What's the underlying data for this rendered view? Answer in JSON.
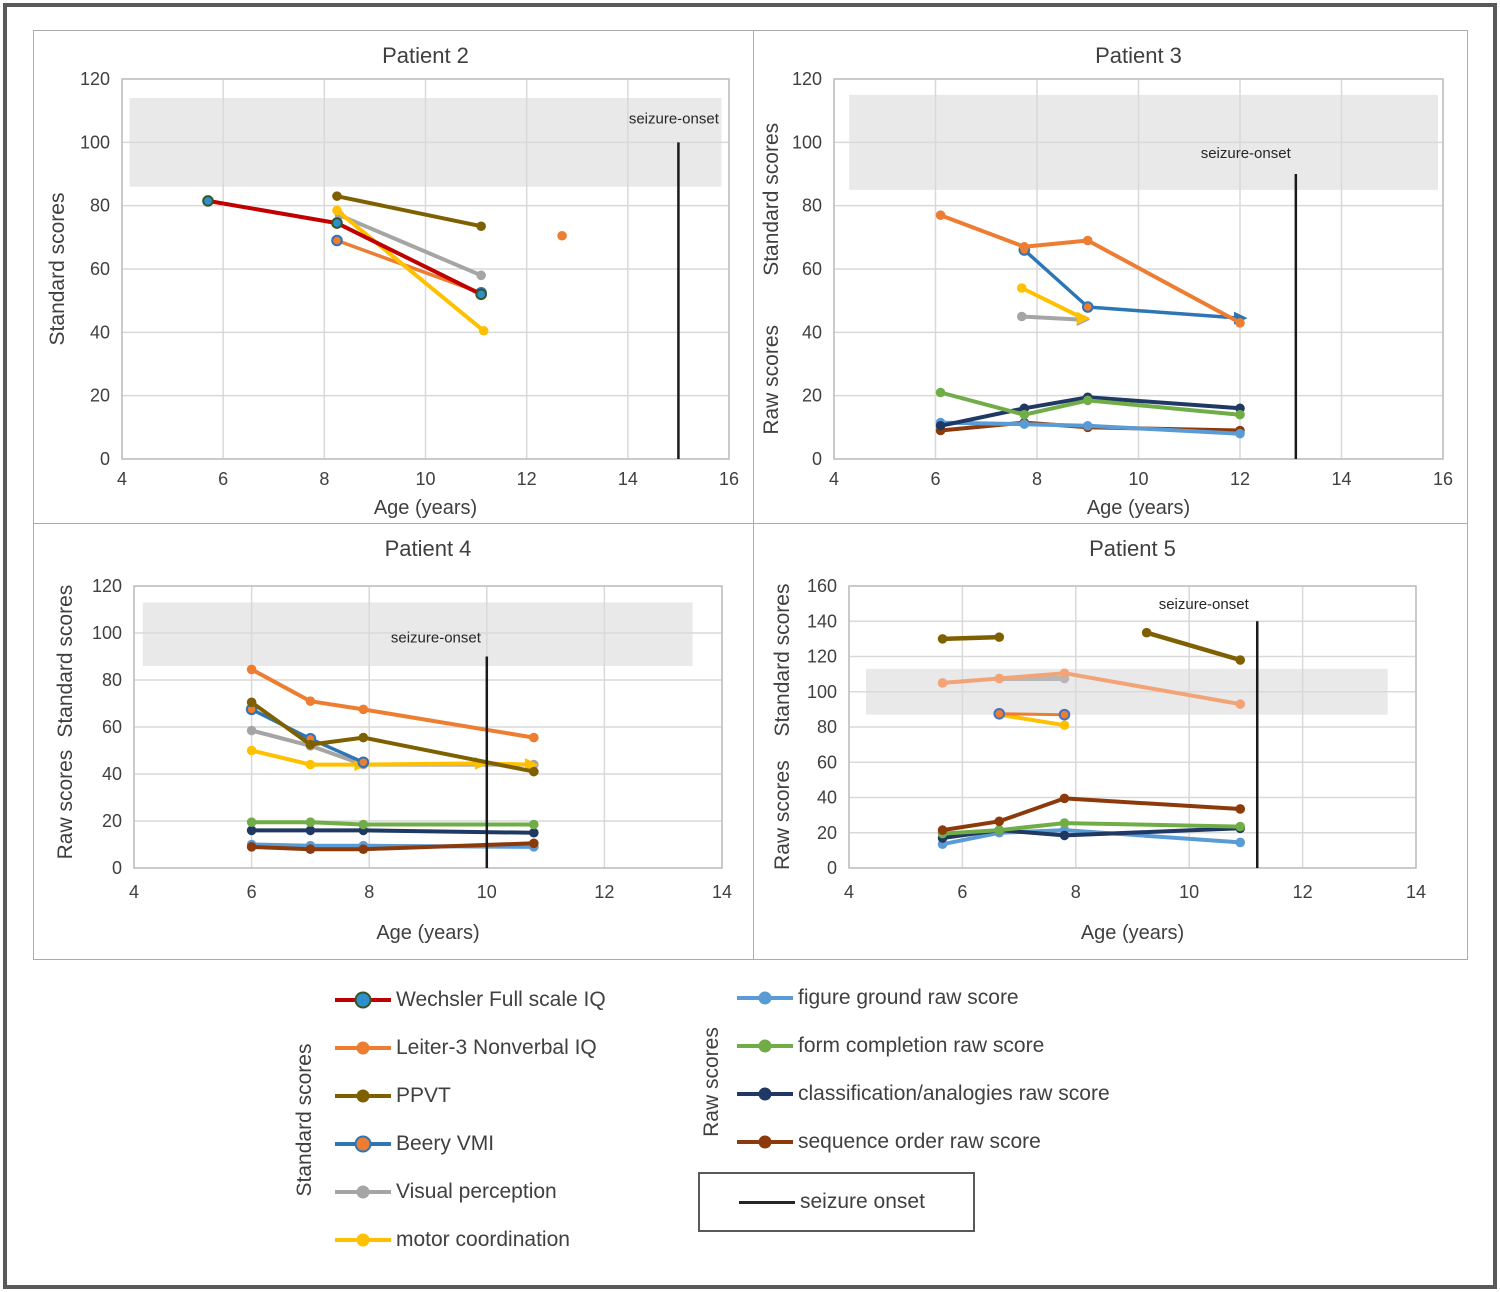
{
  "figure": {
    "border_color": "#58595B",
    "grid_color": "#D9D9D9",
    "plot_border_color": "#BFBFBF",
    "band_color": "#E9E9E9",
    "seizure_line_color": "#1A1A1A"
  },
  "legend": {
    "standard_label": "Standard scores",
    "raw_label": "Raw scores",
    "standard_items": [
      {
        "label": "Wechsler Full scale IQ",
        "line": "#C00000",
        "marker": "#2E8FCE",
        "marker_stroke": "#375623"
      },
      {
        "label": "Leiter-3 Nonverbal IQ",
        "line": "#ED7D31",
        "marker": "#ED7D31"
      },
      {
        "label": "PPVT",
        "line": "#7F6000",
        "marker": "#7F6000"
      },
      {
        "label": "Beery VMI",
        "line": "#2E75B6",
        "marker": "#ED7D31",
        "marker_stroke": "#2E75B6"
      },
      {
        "label": "Visual perception",
        "line": "#A5A5A5",
        "marker": "#A5A5A5"
      },
      {
        "label": "motor coordination",
        "line": "#FFC000",
        "marker": "#FFC000"
      }
    ],
    "raw_items": [
      {
        "label": "figure ground raw score",
        "line": "#5B9BD5",
        "marker": "#5B9BD5"
      },
      {
        "label": "form completion raw score",
        "line": "#70AD47",
        "marker": "#70AD47"
      },
      {
        "label": "classification/analogies raw score",
        "line": "#1F3864",
        "marker": "#1F3864"
      },
      {
        "label": "sequence order raw score",
        "line": "#8C3A0B",
        "marker": "#8C3A0B"
      }
    ],
    "seizure_item": {
      "label": "seizure onset",
      "line": "#262626"
    }
  },
  "chart_data": [
    {
      "type": "line",
      "title": "Patient 2",
      "xlabel": "Age (years)",
      "xlim": [
        4,
        16
      ],
      "ylim": [
        0,
        120
      ],
      "x_ticks": [
        4,
        6,
        8,
        10,
        12,
        14,
        16
      ],
      "y_ticks": [
        0,
        20,
        40,
        60,
        80,
        100,
        120
      ],
      "normal_band": {
        "x0": 4.15,
        "x1": 15.85,
        "y0": 86,
        "y1": 114
      },
      "ylabels": [
        {
          "text": "Standard scores",
          "y": 60
        }
      ],
      "seizure": {
        "x": 15,
        "y_top": 100,
        "label": "seizure-onset",
        "label_x": 15.8,
        "label_y": 106,
        "anchor": "end"
      },
      "series": [
        {
          "name": "beery-vmi",
          "color": "#ED7D31",
          "width": 3.5,
          "marker_fill": "#ED7D31",
          "marker_stroke": "#2E75B6",
          "points": [
            [
              8.25,
              69
            ],
            [
              11.1,
              52.5
            ]
          ]
        },
        {
          "name": "visual-perception",
          "color": "#A5A5A5",
          "width": 4,
          "marker_fill": "#A5A5A5",
          "points": [
            [
              8.3,
              77
            ],
            [
              11.1,
              58
            ]
          ]
        },
        {
          "name": "motor-coordination",
          "color": "#FFC000",
          "width": 4,
          "marker_fill": "#FFC000",
          "points": [
            [
              8.25,
              78.5
            ],
            [
              11.15,
              40.5
            ]
          ]
        },
        {
          "name": "ppvt",
          "color": "#7F6000",
          "width": 4,
          "marker_fill": "#7F6000",
          "points": [
            [
              8.25,
              83
            ],
            [
              11.1,
              73.5
            ]
          ]
        },
        {
          "name": "wechsler-full-scale-iq",
          "color": "#C00000",
          "width": 4,
          "marker_fill": "#2E8FCE",
          "marker_stroke": "#375623",
          "points": [
            [
              5.7,
              81.5
            ],
            [
              8.25,
              74.5
            ],
            [
              11.1,
              52
            ]
          ]
        },
        {
          "name": "leiter-3-nonverbal-iq",
          "color": "#ED7D31",
          "width": 3.5,
          "marker_fill": "#ED7D31",
          "points": [
            [
              12.7,
              70.5
            ]
          ]
        }
      ]
    },
    {
      "type": "line",
      "title": "Patient 3",
      "xlabel": "Age (years)",
      "xlim": [
        4,
        16
      ],
      "ylim": [
        0,
        120
      ],
      "x_ticks": [
        4,
        6,
        8,
        10,
        12,
        14,
        16
      ],
      "y_ticks": [
        0,
        20,
        40,
        60,
        80,
        100,
        120
      ],
      "normal_band": {
        "x0": 4.3,
        "x1": 15.9,
        "y0": 85,
        "y1": 115
      },
      "ylabels": [
        {
          "text": "Standard scores",
          "y": 82
        },
        {
          "text": "Raw scores",
          "y": 25
        }
      ],
      "seizure": {
        "x": 13.1,
        "y_top": 90,
        "label": "seizure-onset",
        "label_x": 13.0,
        "label_y": 95,
        "anchor": "end"
      },
      "series": [
        {
          "name": "sequence-order-raw",
          "color": "#8C3A0B",
          "width": 4,
          "marker_fill": "#8C3A0B",
          "points": [
            [
              6.1,
              9
            ],
            [
              7.75,
              11.5
            ],
            [
              9.0,
              10
            ],
            [
              12.0,
              9
            ]
          ]
        },
        {
          "name": "figure-ground-raw",
          "color": "#5B9BD5",
          "width": 4,
          "marker_fill": "#5B9BD5",
          "points": [
            [
              6.1,
              11.5
            ],
            [
              7.75,
              11
            ],
            [
              9.0,
              10.5
            ],
            [
              12.0,
              8
            ]
          ]
        },
        {
          "name": "classification-analogies-raw",
          "color": "#1F3864",
          "width": 4,
          "marker_fill": "#1F3864",
          "points": [
            [
              6.1,
              10.5
            ],
            [
              7.75,
              16
            ],
            [
              9.0,
              19.5
            ],
            [
              12.0,
              16
            ]
          ]
        },
        {
          "name": "form-completion-raw",
          "color": "#70AD47",
          "width": 4,
          "marker_fill": "#70AD47",
          "points": [
            [
              6.1,
              21
            ],
            [
              7.75,
              14
            ],
            [
              9.0,
              18.5
            ],
            [
              12.0,
              14
            ]
          ]
        },
        {
          "name": "visual-perception",
          "color": "#A5A5A5",
          "width": 4,
          "marker_fill": "#A5A5A5",
          "points": [
            [
              7.7,
              45
            ],
            [
              8.9,
              44,
              "a"
            ]
          ]
        },
        {
          "name": "motor-coordination",
          "color": "#FFC000",
          "width": 4,
          "marker_fill": "#FFC000",
          "points": [
            [
              7.7,
              54
            ],
            [
              8.9,
              44.5,
              "a"
            ]
          ]
        },
        {
          "name": "beery-vmi",
          "color": "#2E75B6",
          "width": 3.5,
          "marker_fill": "#ED7D31",
          "marker_stroke": "#2E75B6",
          "points": [
            [
              7.75,
              66
            ],
            [
              9.0,
              48
            ],
            [
              12.0,
              44.5,
              "a"
            ]
          ]
        },
        {
          "name": "leiter-3-nonverbal-iq",
          "color": "#ED7D31",
          "width": 4,
          "marker_fill": "#ED7D31",
          "points": [
            [
              6.1,
              77
            ],
            [
              7.75,
              67
            ],
            [
              9.0,
              69
            ],
            [
              12.0,
              43
            ]
          ]
        }
      ]
    },
    {
      "type": "line",
      "title": "Patient 4",
      "xlabel": "Age (years)",
      "xlim": [
        4,
        14
      ],
      "ylim": [
        0,
        120
      ],
      "x_ticks": [
        4,
        6,
        8,
        10,
        12,
        14
      ],
      "y_ticks": [
        0,
        20,
        40,
        60,
        80,
        100,
        120
      ],
      "normal_band": {
        "x0": 4.15,
        "x1": 13.5,
        "y0": 86,
        "y1": 113
      },
      "ylabels": [
        {
          "text": "Standard scores",
          "y": 88
        },
        {
          "text": "Raw scores",
          "y": 27
        }
      ],
      "seizure": {
        "x": 10,
        "y_top": 90,
        "label": "seizure-onset",
        "label_x": 9.9,
        "label_y": 96,
        "anchor": "end"
      },
      "series": [
        {
          "name": "figure-ground-raw",
          "color": "#5B9BD5",
          "width": 4,
          "marker_fill": "#5B9BD5",
          "points": [
            [
              6,
              10
            ],
            [
              7,
              9.5
            ],
            [
              7.9,
              9.5
            ],
            [
              10.8,
              9
            ]
          ]
        },
        {
          "name": "sequence-order-raw",
          "color": "#8C3A0B",
          "width": 4,
          "marker_fill": "#8C3A0B",
          "points": [
            [
              6,
              9
            ],
            [
              7,
              8
            ],
            [
              7.9,
              8
            ],
            [
              10.8,
              10.5
            ]
          ]
        },
        {
          "name": "classification-analogies-raw",
          "color": "#1F3864",
          "width": 4,
          "marker_fill": "#1F3864",
          "points": [
            [
              6,
              16
            ],
            [
              7,
              16
            ],
            [
              7.9,
              16
            ],
            [
              10.8,
              15
            ]
          ]
        },
        {
          "name": "form-completion-raw",
          "color": "#70AD47",
          "width": 4,
          "marker_fill": "#70AD47",
          "points": [
            [
              6,
              19.5
            ],
            [
              7,
              19.5
            ],
            [
              7.9,
              18.5
            ],
            [
              10.8,
              18.5
            ]
          ]
        },
        {
          "name": "visual-perception",
          "color": "#A5A5A5",
          "width": 4,
          "marker_fill": "#A5A5A5",
          "points": [
            [
              6,
              58.5
            ],
            [
              7,
              52
            ],
            [
              7.9,
              44
            ],
            [
              10.8,
              44
            ]
          ]
        },
        {
          "name": "motor-coordination",
          "color": "#FFC000",
          "width": 4,
          "marker_fill": "#FFC000",
          "points": [
            [
              6,
              50
            ],
            [
              7,
              44
            ],
            [
              7.85,
              44,
              "a"
            ],
            [
              9.9,
              44.5,
              "a"
            ],
            [
              10.75,
              44,
              "a"
            ]
          ]
        },
        {
          "name": "beery-vmi",
          "color": "#2E75B6",
          "width": 3.5,
          "marker_fill": "#ED7D31",
          "marker_stroke": "#2E75B6",
          "points": [
            [
              6,
              67.5
            ],
            [
              7,
              55
            ],
            [
              7.9,
              45
            ]
          ]
        },
        {
          "name": "ppvt",
          "color": "#7F6000",
          "width": 4,
          "marker_fill": "#7F6000",
          "points": [
            [
              6,
              70.5
            ],
            [
              7,
              52.5
            ],
            [
              7.9,
              55.5
            ],
            [
              10.8,
              41
            ]
          ]
        },
        {
          "name": "leiter-3-nonverbal-iq",
          "color": "#ED7D31",
          "width": 4,
          "marker_fill": "#ED7D31",
          "points": [
            [
              6,
              84.5
            ],
            [
              7,
              71
            ],
            [
              7.9,
              67.5
            ],
            [
              10.8,
              55.5
            ]
          ]
        }
      ]
    },
    {
      "type": "line",
      "title": "Patient 5",
      "xlabel": "Age (years)",
      "xlim": [
        4,
        14
      ],
      "ylim": [
        0,
        160
      ],
      "x_ticks": [
        4,
        6,
        8,
        10,
        12,
        14
      ],
      "y_ticks": [
        0,
        20,
        40,
        60,
        80,
        100,
        120,
        140,
        160
      ],
      "normal_band": {
        "x0": 4.3,
        "x1": 13.5,
        "y0": 87,
        "y1": 113
      },
      "ylabels": [
        {
          "text": "Standard scores",
          "y": 118
        },
        {
          "text": "Raw scores",
          "y": 30
        }
      ],
      "seizure": {
        "x": 11.2,
        "y_top": 140,
        "label": "seizure-onset",
        "label_x": 11.05,
        "label_y": 147,
        "anchor": "end"
      },
      "series": [
        {
          "name": "figure-ground-raw",
          "color": "#5B9BD5",
          "width": 4,
          "marker_fill": "#5B9BD5",
          "points": [
            [
              5.65,
              13.5
            ],
            [
              6.65,
              20
            ],
            [
              7.8,
              21.5
            ],
            [
              10.9,
              14.5
            ]
          ]
        },
        {
          "name": "classification-analogies-raw",
          "color": "#1F3864",
          "width": 4,
          "marker_fill": "#1F3864",
          "points": [
            [
              5.65,
              17
            ],
            [
              6.65,
              21.5
            ],
            [
              7.8,
              18.5
            ],
            [
              10.9,
              22.5
            ]
          ]
        },
        {
          "name": "form-completion-raw",
          "color": "#70AD47",
          "width": 4,
          "marker_fill": "#70AD47",
          "points": [
            [
              5.65,
              19.5
            ],
            [
              6.65,
              21.5
            ],
            [
              7.8,
              25.5
            ],
            [
              10.9,
              23.5
            ]
          ]
        },
        {
          "name": "sequence-order-raw",
          "color": "#8C3A0B",
          "width": 4,
          "marker_fill": "#8C3A0B",
          "points": [
            [
              5.65,
              21.5
            ],
            [
              6.65,
              26.5
            ],
            [
              7.8,
              39.5
            ],
            [
              10.9,
              33.5
            ]
          ]
        },
        {
          "name": "visual-perception",
          "color": "#B7B7B7",
          "width": 5,
          "marker_fill": "#B7B7B7",
          "points": [
            [
              6.65,
              107.5
            ],
            [
              7.8,
              107.5
            ]
          ]
        },
        {
          "name": "leiter-3-nonverbal-iq",
          "color": "#F2A477",
          "width": 4,
          "marker_fill": "#F2A477",
          "points": [
            [
              5.65,
              105
            ],
            [
              6.65,
              107.5
            ],
            [
              7.8,
              110.5
            ],
            [
              10.9,
              93
            ]
          ]
        },
        {
          "name": "motor-coordination",
          "color": "#FFC000",
          "width": 4,
          "marker_fill": "#FFC000",
          "points": [
            [
              6.65,
              87
            ],
            [
              7.8,
              81
            ]
          ]
        },
        {
          "name": "beery-vmi",
          "color": "#ED7D31",
          "width": 3,
          "marker_fill": "#ED7D31",
          "marker_stroke": "#4472C4",
          "points": [
            [
              6.65,
              87.5
            ],
            [
              7.8,
              87
            ]
          ]
        },
        {
          "name": "ppvt-early",
          "color": "#7F6000",
          "width": 4.5,
          "marker_fill": "#7F6000",
          "points": [
            [
              5.65,
              130
            ],
            [
              6.65,
              131
            ]
          ]
        },
        {
          "name": "ppvt-late",
          "color": "#7F6000",
          "width": 4.5,
          "marker_fill": "#7F6000",
          "points": [
            [
              9.25,
              133.5
            ],
            [
              10.9,
              118
            ]
          ]
        }
      ]
    }
  ]
}
